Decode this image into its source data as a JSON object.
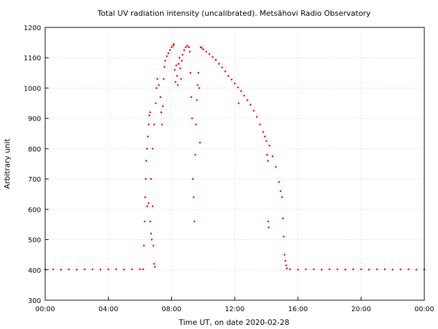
{
  "chart_data": {
    "type": "scatter",
    "title": "Total UV radiation intensity (uncalibrated). Metsähovi Radio Observatory",
    "xlabel": "Time UT, on date 2020-02-28",
    "ylabel": "Arbitrary unit",
    "xlim": [
      "00:00",
      "24:00"
    ],
    "ylim": [
      300,
      1200
    ],
    "x_ticks": [
      "00:00",
      "04:00",
      "08:00",
      "12:00",
      "16:00",
      "20:00",
      "00:00"
    ],
    "y_ticks": [
      300,
      400,
      500,
      600,
      700,
      800,
      900,
      1000,
      1100,
      1200
    ],
    "grid": true,
    "marker_color": "#ff0000",
    "x_unit": "hours UT",
    "series": [
      {
        "points": [
          [
            0.0,
            402
          ],
          [
            0.5,
            402
          ],
          [
            1.0,
            401
          ],
          [
            1.5,
            402
          ],
          [
            2.0,
            401
          ],
          [
            2.5,
            402
          ],
          [
            3.0,
            402
          ],
          [
            3.5,
            401
          ],
          [
            4.0,
            402
          ],
          [
            4.5,
            402
          ],
          [
            5.0,
            401
          ],
          [
            5.5,
            402
          ],
          [
            6.0,
            402
          ],
          [
            6.2,
            402
          ],
          [
            6.25,
            480
          ],
          [
            6.3,
            560
          ],
          [
            6.33,
            640
          ],
          [
            6.37,
            700
          ],
          [
            6.4,
            760
          ],
          [
            6.45,
            800
          ],
          [
            6.5,
            840
          ],
          [
            6.55,
            880
          ],
          [
            6.6,
            910
          ],
          [
            6.65,
            920
          ],
          [
            6.45,
            610
          ],
          [
            6.55,
            620
          ],
          [
            6.65,
            560
          ],
          [
            6.7,
            520
          ],
          [
            6.75,
            500
          ],
          [
            6.8,
            610
          ],
          [
            6.85,
            480
          ],
          [
            6.9,
            420
          ],
          [
            6.95,
            410
          ],
          [
            6.7,
            700
          ],
          [
            6.8,
            800
          ],
          [
            6.9,
            880
          ],
          [
            7.0,
            950
          ],
          [
            7.05,
            1000
          ],
          [
            7.1,
            1030
          ],
          [
            7.2,
            1010
          ],
          [
            7.3,
            970
          ],
          [
            7.35,
            920
          ],
          [
            7.4,
            880
          ],
          [
            7.45,
            940
          ],
          [
            7.5,
            1030
          ],
          [
            7.55,
            1070
          ],
          [
            7.6,
            1090
          ],
          [
            7.7,
            1105
          ],
          [
            7.8,
            1115
          ],
          [
            7.9,
            1125
          ],
          [
            8.0,
            1135
          ],
          [
            8.1,
            1140
          ],
          [
            8.15,
            1145
          ],
          [
            8.2,
            1060
          ],
          [
            8.25,
            1020
          ],
          [
            8.3,
            1075
          ],
          [
            8.35,
            1040
          ],
          [
            8.4,
            1010
          ],
          [
            8.45,
            1080
          ],
          [
            8.5,
            1100
          ],
          [
            8.55,
            1065
          ],
          [
            8.6,
            1030
          ],
          [
            8.65,
            1090
          ],
          [
            8.7,
            1110
          ],
          [
            8.8,
            1125
          ],
          [
            8.9,
            1135
          ],
          [
            9.0,
            1140
          ],
          [
            9.1,
            1135
          ],
          [
            9.15,
            1120
          ],
          [
            9.2,
            1050
          ],
          [
            9.25,
            970
          ],
          [
            9.3,
            900
          ],
          [
            9.35,
            700
          ],
          [
            9.4,
            640
          ],
          [
            9.45,
            560
          ],
          [
            9.5,
            780
          ],
          [
            9.55,
            880
          ],
          [
            9.6,
            960
          ],
          [
            9.65,
            1010
          ],
          [
            9.7,
            1050
          ],
          [
            9.75,
            1000
          ],
          [
            9.8,
            820
          ],
          [
            9.85,
            1135
          ],
          [
            9.9,
            1133
          ],
          [
            10.0,
            1128
          ],
          [
            10.2,
            1120
          ],
          [
            10.4,
            1112
          ],
          [
            10.6,
            1103
          ],
          [
            10.8,
            1093
          ],
          [
            11.0,
            1080
          ],
          [
            11.2,
            1068
          ],
          [
            11.4,
            1055
          ],
          [
            11.6,
            1040
          ],
          [
            11.8,
            1028
          ],
          [
            12.0,
            1015
          ],
          [
            12.2,
            1002
          ],
          [
            12.25,
            950
          ],
          [
            12.4,
            990
          ],
          [
            12.6,
            975
          ],
          [
            12.8,
            960
          ],
          [
            13.0,
            945
          ],
          [
            13.2,
            925
          ],
          [
            13.4,
            905
          ],
          [
            13.6,
            880
          ],
          [
            13.8,
            855
          ],
          [
            13.9,
            840
          ],
          [
            14.0,
            825
          ],
          [
            14.05,
            780
          ],
          [
            14.1,
            760
          ],
          [
            14.12,
            560
          ],
          [
            14.15,
            540
          ],
          [
            14.2,
            810
          ],
          [
            14.4,
            775
          ],
          [
            14.6,
            740
          ],
          [
            14.8,
            690
          ],
          [
            14.9,
            660
          ],
          [
            15.0,
            640
          ],
          [
            15.05,
            570
          ],
          [
            15.1,
            510
          ],
          [
            15.15,
            450
          ],
          [
            15.2,
            430
          ],
          [
            15.25,
            415
          ],
          [
            15.3,
            405
          ],
          [
            15.5,
            402
          ],
          [
            16.0,
            401
          ],
          [
            16.5,
            402
          ],
          [
            17.0,
            402
          ],
          [
            17.5,
            401
          ],
          [
            18.0,
            402
          ],
          [
            18.5,
            402
          ],
          [
            19.0,
            401
          ],
          [
            19.5,
            402
          ],
          [
            20.0,
            402
          ],
          [
            20.5,
            401
          ],
          [
            21.0,
            402
          ],
          [
            21.5,
            402
          ],
          [
            22.0,
            401
          ],
          [
            22.5,
            402
          ],
          [
            23.0,
            402
          ],
          [
            23.5,
            401
          ],
          [
            24.0,
            402
          ]
        ]
      }
    ]
  }
}
